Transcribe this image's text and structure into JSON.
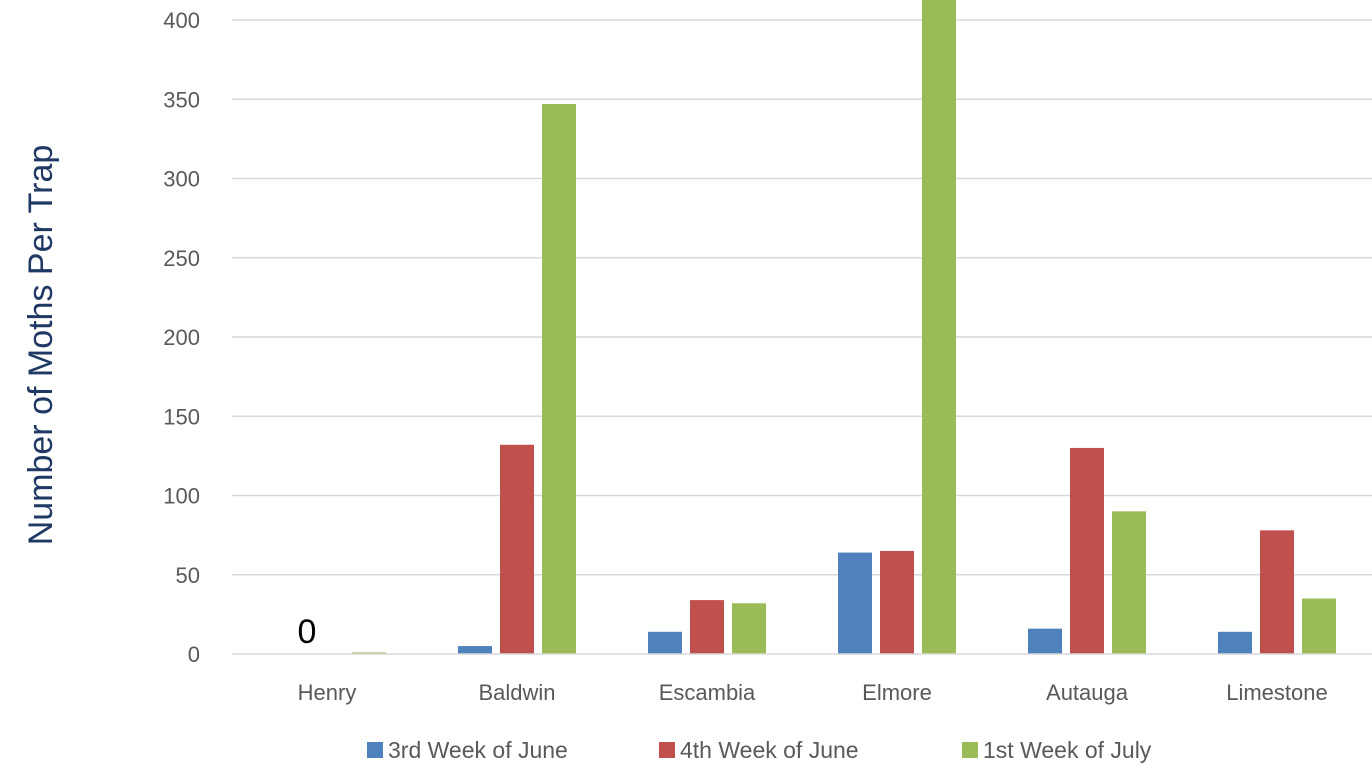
{
  "chart_data": {
    "type": "bar",
    "title": "",
    "xlabel": "",
    "ylabel": "Number of Moths Per Trap",
    "categories": [
      "Henry",
      "Baldwin",
      "Escambia",
      "Elmore",
      "Autauga",
      "Limestone"
    ],
    "series": [
      {
        "name": "3rd Week of June",
        "color": "#4f81bd",
        "values": [
          0,
          5,
          14,
          64,
          16,
          14
        ]
      },
      {
        "name": "4th Week of June",
        "color": "#c0504d",
        "values": [
          0,
          132,
          34,
          65,
          130,
          78
        ]
      },
      {
        "name": "1st Week of July",
        "color": "#9bbb59",
        "values": [
          1,
          347,
          32,
          420,
          90,
          35
        ]
      }
    ],
    "ylim": [
      0,
      400
    ],
    "yticks": [
      0,
      50,
      100,
      150,
      200,
      250,
      300,
      350,
      400
    ],
    "grid": true,
    "legend": "bottom",
    "annotations": [
      {
        "text": "0",
        "category": "Henry"
      }
    ]
  }
}
